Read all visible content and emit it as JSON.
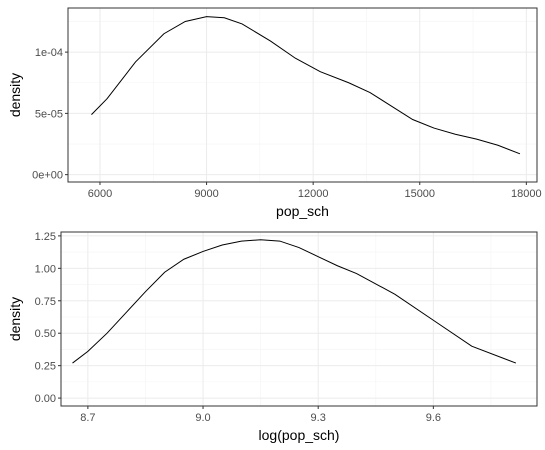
{
  "chart_data": [
    {
      "type": "line",
      "xlabel": "pop_sch",
      "ylabel": "density",
      "xlim": [
        5100,
        18300
      ],
      "ylim": [
        -6e-06,
        0.000136
      ],
      "x_ticks": [
        6000,
        9000,
        12000,
        15000,
        18000
      ],
      "x_tick_labels": [
        "6000",
        "9000",
        "12000",
        "15000",
        "18000"
      ],
      "y_ticks": [
        0,
        5e-05,
        0.0001
      ],
      "y_tick_labels": [
        "0e+00",
        "5e-05",
        "1e-04"
      ],
      "grid": true,
      "series": [
        {
          "x": [
            5760,
            6200,
            7000,
            7800,
            8400,
            9000,
            9500,
            10000,
            10800,
            11500,
            12200,
            13000,
            13600,
            14200,
            14800,
            15400,
            16000,
            16600,
            17200,
            17820
          ],
          "y": [
            4.9e-05,
            6.2e-05,
            9.2e-05,
            0.000115,
            0.000125,
            0.000129,
            0.000128,
            0.000123,
            0.000109,
            9.5e-05,
            8.4e-05,
            7.5e-05,
            6.7e-05,
            5.6e-05,
            4.5e-05,
            3.8e-05,
            3.3e-05,
            2.9e-05,
            2.4e-05,
            1.7e-05
          ]
        }
      ]
    },
    {
      "type": "line",
      "xlabel": "log(pop_sch)",
      "ylabel": "density",
      "xlim": [
        8.63,
        9.87
      ],
      "ylim": [
        -0.061,
        1.28
      ],
      "x_ticks": [
        8.7,
        9.0,
        9.3,
        9.6
      ],
      "x_tick_labels": [
        "8.7",
        "9.0",
        "9.3",
        "9.6"
      ],
      "y_ticks": [
        0,
        0.25,
        0.5,
        0.75,
        1.0,
        1.25
      ],
      "y_tick_labels": [
        "0.00",
        "0.25",
        "0.50",
        "0.75",
        "1.00",
        "1.25"
      ],
      "grid": true,
      "series": [
        {
          "x": [
            8.66,
            8.7,
            8.75,
            8.8,
            8.85,
            8.9,
            8.95,
            9.0,
            9.05,
            9.1,
            9.15,
            9.2,
            9.25,
            9.3,
            9.35,
            9.4,
            9.5,
            9.6,
            9.7,
            9.815
          ],
          "y": [
            0.27,
            0.36,
            0.5,
            0.66,
            0.82,
            0.97,
            1.07,
            1.13,
            1.18,
            1.21,
            1.22,
            1.21,
            1.16,
            1.09,
            1.02,
            0.96,
            0.8,
            0.6,
            0.4,
            0.27
          ]
        }
      ]
    }
  ]
}
